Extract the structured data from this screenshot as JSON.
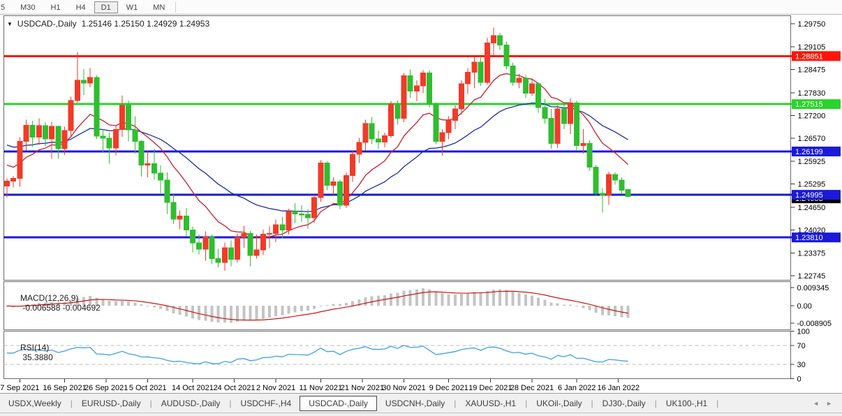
{
  "toolbar": {
    "buttons": [
      "5",
      "M30",
      "H1",
      "H4",
      "D1",
      "W1",
      "MN"
    ],
    "active": "D1"
  },
  "main_title": {
    "dropdown_icon": "▼",
    "symbol": "USDCAD-,Daily",
    "quotes": "1.25146 1.25150 1.24929 1.24953"
  },
  "colors": {
    "background": "#ffffff",
    "panel_border": "#6a6a6a",
    "candle_up": "#f23a28",
    "candle_down": "#2fbe2f",
    "hline_red": "#ff1508",
    "hline_green": "#2bd32b",
    "hline_blue": "#1a1ad8",
    "ma_fast": "#c62031",
    "ma_slow": "#1c2f9c",
    "macd_hist": "#c4c4c4",
    "macd_signal": "#c80000",
    "rsi_line": "#3da0e8",
    "rsi_level_dash": "#b8b8b8",
    "axis_text": "#000000",
    "badge_text": "#ffffff",
    "current_price_badge": "#000000"
  },
  "chart_data": {
    "type": "candlestick",
    "symbol": "USDCAD",
    "timeframe": "Daily",
    "current_quote": {
      "open": 1.25146,
      "high": 1.2515,
      "low": 1.24929,
      "close": 1.24953
    },
    "price_axis_ticks": [
      "1.29750",
      "1.29105",
      "1.28475",
      "1.27830",
      "1.27200",
      "1.26570",
      "1.25925",
      "1.25295",
      "1.24650",
      "1.24020",
      "1.23375",
      "1.22745"
    ],
    "hlines": [
      {
        "price": 1.28851,
        "label": "1.28851",
        "color_key": "hline_red"
      },
      {
        "price": 1.27515,
        "label": "1.27515",
        "color_key": "hline_green"
      },
      {
        "price": 1.26199,
        "label": "1.26199",
        "color_key": "hline_blue"
      },
      {
        "price": 1.24995,
        "label": "1.24995",
        "color_key": "hline_blue"
      },
      {
        "price": 1.2381,
        "label": "1.23810",
        "color_key": "hline_blue"
      }
    ],
    "current_price_marker": {
      "price": 1.24953,
      "label": "1.24953"
    },
    "date_ticks": [
      {
        "label": "7 Sep 2021",
        "i": 2
      },
      {
        "label": "16 Sep 2021",
        "i": 9
      },
      {
        "label": "26 Sep 2021",
        "i": 15.5
      },
      {
        "label": "5 Oct 2021",
        "i": 22
      },
      {
        "label": "14 Oct 2021",
        "i": 29
      },
      {
        "label": "24 Oct 2021",
        "i": 35.5
      },
      {
        "label": "2 Nov 2021",
        "i": 42
      },
      {
        "label": "11 Nov 2021",
        "i": 49
      },
      {
        "label": "21 Nov 2021",
        "i": 55.5
      },
      {
        "label": "30 Nov 2021",
        "i": 62
      },
      {
        "label": "9 Dec 2021",
        "i": 69
      },
      {
        "label": "19 Dec 2021",
        "i": 75.5
      },
      {
        "label": "28 Dec 2021",
        "i": 82
      },
      {
        "label": "6 Jan 2022",
        "i": 89
      },
      {
        "label": "16 Jan 2022",
        "i": 95.5
      }
    ],
    "candles": [
      [
        "2021.09.03",
        1.2524,
        1.2545,
        1.2493,
        1.2538
      ],
      [
        "2021.09.06",
        1.2538,
        1.2552,
        1.252,
        1.2545
      ],
      [
        "2021.09.07",
        1.2545,
        1.266,
        1.2522,
        1.2648
      ],
      [
        "2021.09.08",
        1.2648,
        1.2708,
        1.2622,
        1.2693
      ],
      [
        "2021.09.09",
        1.2693,
        1.2705,
        1.2633,
        1.266
      ],
      [
        "2021.09.10",
        1.266,
        1.2712,
        1.2638,
        1.2692
      ],
      [
        "2021.09.13",
        1.2692,
        1.2701,
        1.2635,
        1.2655
      ],
      [
        "2021.09.14",
        1.2655,
        1.2702,
        1.26,
        1.269
      ],
      [
        "2021.09.15",
        1.269,
        1.2692,
        1.2601,
        1.2628
      ],
      [
        "2021.09.16",
        1.2628,
        1.2689,
        1.261,
        1.2678
      ],
      [
        "2021.09.17",
        1.2678,
        1.2772,
        1.2662,
        1.2762
      ],
      [
        "2021.09.20",
        1.2762,
        1.2896,
        1.2756,
        1.2818
      ],
      [
        "2021.09.21",
        1.2818,
        1.2849,
        1.2777,
        1.281
      ],
      [
        "2021.09.22",
        1.281,
        1.2852,
        1.2798,
        1.2826
      ],
      [
        "2021.09.23",
        1.2826,
        1.2831,
        1.2655,
        1.2663
      ],
      [
        "2021.09.24",
        1.2663,
        1.2678,
        1.2618,
        1.2657
      ],
      [
        "2021.09.27",
        1.2657,
        1.2672,
        1.2586,
        1.263
      ],
      [
        "2021.09.28",
        1.263,
        1.2692,
        1.2609,
        1.2681
      ],
      [
        "2021.09.29",
        1.2681,
        1.2775,
        1.2661,
        1.2748
      ],
      [
        "2021.09.30",
        1.2748,
        1.2762,
        1.2648,
        1.268
      ],
      [
        "2021.10.01",
        1.268,
        1.2718,
        1.2614,
        1.2648
      ],
      [
        "2021.10.04",
        1.2648,
        1.2652,
        1.255,
        1.2582
      ],
      [
        "2021.10.05",
        1.2582,
        1.2622,
        1.2548,
        1.2586
      ],
      [
        "2021.10.06",
        1.2586,
        1.2628,
        1.2541,
        1.256
      ],
      [
        "2021.10.07",
        1.256,
        1.2581,
        1.2504,
        1.254
      ],
      [
        "2021.10.08",
        1.254,
        1.2562,
        1.2446,
        1.2478
      ],
      [
        "2021.10.11",
        1.2478,
        1.2502,
        1.2418,
        1.2432
      ],
      [
        "2021.10.12",
        1.2432,
        1.2456,
        1.2404,
        1.2441
      ],
      [
        "2021.10.13",
        1.2441,
        1.2463,
        1.2383,
        1.2402
      ],
      [
        "2021.10.14",
        1.2402,
        1.2411,
        1.234,
        1.2366
      ],
      [
        "2021.10.15",
        1.2366,
        1.2389,
        1.2334,
        1.2348
      ],
      [
        "2021.10.18",
        1.2348,
        1.2398,
        1.2316,
        1.2382
      ],
      [
        "2021.10.19",
        1.2382,
        1.2389,
        1.2308,
        1.2322
      ],
      [
        "2021.10.20",
        1.2322,
        1.2349,
        1.2298,
        1.2312
      ],
      [
        "2021.10.21",
        1.2312,
        1.2367,
        1.2288,
        1.2352
      ],
      [
        "2021.10.22",
        1.2352,
        1.2373,
        1.2301,
        1.232
      ],
      [
        "2021.10.25",
        1.232,
        1.2391,
        1.2312,
        1.2381
      ],
      [
        "2021.10.26",
        1.2381,
        1.2413,
        1.2352,
        1.2392
      ],
      [
        "2021.10.27",
        1.2392,
        1.2399,
        1.2301,
        1.2331
      ],
      [
        "2021.10.28",
        1.2331,
        1.2389,
        1.2322,
        1.2346
      ],
      [
        "2021.10.29",
        1.2346,
        1.2403,
        1.2332,
        1.239
      ],
      [
        "2021.11.01",
        1.239,
        1.2412,
        1.2351,
        1.2392
      ],
      [
        "2021.11.02",
        1.2392,
        1.2431,
        1.2368,
        1.2416
      ],
      [
        "2021.11.03",
        1.2416,
        1.2439,
        1.2378,
        1.2402
      ],
      [
        "2021.11.04",
        1.2402,
        1.2461,
        1.2389,
        1.2453
      ],
      [
        "2021.11.05",
        1.2453,
        1.2476,
        1.2421,
        1.2446
      ],
      [
        "2021.11.08",
        1.2446,
        1.2471,
        1.2424,
        1.2445
      ],
      [
        "2021.11.09",
        1.2445,
        1.246,
        1.2405,
        1.2436
      ],
      [
        "2021.11.10",
        1.2436,
        1.25,
        1.2421,
        1.2492
      ],
      [
        "2021.11.11",
        1.2492,
        1.2596,
        1.248,
        1.2588
      ],
      [
        "2021.11.12",
        1.2588,
        1.2592,
        1.2512,
        1.2526
      ],
      [
        "2021.11.15",
        1.2526,
        1.2548,
        1.25,
        1.2536
      ],
      [
        "2021.11.16",
        1.2536,
        1.2541,
        1.246,
        1.2471
      ],
      [
        "2021.11.17",
        1.2471,
        1.2561,
        1.2463,
        1.2553
      ],
      [
        "2021.11.18",
        1.2553,
        1.2622,
        1.2536,
        1.2612
      ],
      [
        "2021.11.19",
        1.2612,
        1.2658,
        1.2588,
        1.2645
      ],
      [
        "2021.11.22",
        1.2645,
        1.2708,
        1.2622,
        1.2698
      ],
      [
        "2021.11.23",
        1.2698,
        1.2716,
        1.264,
        1.2655
      ],
      [
        "2021.11.24",
        1.2655,
        1.2678,
        1.2628,
        1.2646
      ],
      [
        "2021.11.25",
        1.2646,
        1.2672,
        1.2632,
        1.2664
      ],
      [
        "2021.11.26",
        1.2664,
        1.276,
        1.2658,
        1.2752
      ],
      [
        "2021.11.29",
        1.2752,
        1.2762,
        1.2695,
        1.2712
      ],
      [
        "2021.11.30",
        1.2712,
        1.2837,
        1.2701,
        1.283
      ],
      [
        "2021.12.01",
        1.283,
        1.2848,
        1.2768,
        1.2788
      ],
      [
        "2021.12.02",
        1.2788,
        1.2818,
        1.276,
        1.2802
      ],
      [
        "2021.12.03",
        1.2802,
        1.2846,
        1.2782,
        1.2838
      ],
      [
        "2021.12.06",
        1.2838,
        1.2846,
        1.2742,
        1.2752
      ],
      [
        "2021.12.07",
        1.2752,
        1.2756,
        1.264,
        1.2648
      ],
      [
        "2021.12.08",
        1.2648,
        1.2682,
        1.2608,
        1.2672
      ],
      [
        "2021.12.09",
        1.2672,
        1.2718,
        1.2654,
        1.2706
      ],
      [
        "2021.12.10",
        1.2706,
        1.2748,
        1.2682,
        1.2738
      ],
      [
        "2021.12.13",
        1.2738,
        1.2818,
        1.2722,
        1.2808
      ],
      [
        "2021.12.14",
        1.2808,
        1.2852,
        1.278,
        1.284
      ],
      [
        "2021.12.15",
        1.284,
        1.2882,
        1.2796,
        1.2868
      ],
      [
        "2021.12.16",
        1.2868,
        1.2884,
        1.2802,
        1.2812
      ],
      [
        "2021.12.17",
        1.2812,
        1.2936,
        1.2806,
        1.2922
      ],
      [
        "2021.12.20",
        1.2922,
        1.2964,
        1.2888,
        1.2942
      ],
      [
        "2021.12.21",
        1.2942,
        1.295,
        1.2902,
        1.2916
      ],
      [
        "2021.12.22",
        1.2916,
        1.2926,
        1.2848,
        1.2858
      ],
      [
        "2021.12.23",
        1.2858,
        1.2866,
        1.2802,
        1.2812
      ],
      [
        "2021.12.24",
        1.2812,
        1.2836,
        1.2796,
        1.2824
      ],
      [
        "2021.12.27",
        1.2824,
        1.2832,
        1.2768,
        1.2782
      ],
      [
        "2021.12.28",
        1.2782,
        1.282,
        1.2774,
        1.2808
      ],
      [
        "2021.12.29",
        1.2808,
        1.2812,
        1.2728,
        1.2742
      ],
      [
        "2021.12.30",
        1.2742,
        1.2766,
        1.2698,
        1.2712
      ],
      [
        "2021.12.31",
        1.2712,
        1.2738,
        1.2628,
        1.2642
      ],
      [
        "2022.01.03",
        1.2642,
        1.2748,
        1.263,
        1.2738
      ],
      [
        "2022.01.04",
        1.2738,
        1.2756,
        1.2682,
        1.2698
      ],
      [
        "2022.01.05",
        1.2698,
        1.2768,
        1.2668,
        1.2755
      ],
      [
        "2022.01.06",
        1.2755,
        1.2762,
        1.2622,
        1.2636
      ],
      [
        "2022.01.07",
        1.2636,
        1.2682,
        1.2614,
        1.2642
      ],
      [
        "2022.01.10",
        1.2642,
        1.2652,
        1.2566,
        1.2576
      ],
      [
        "2022.01.11",
        1.2576,
        1.2582,
        1.2496,
        1.2504
      ],
      [
        "2022.01.12",
        1.2504,
        1.2518,
        1.245,
        1.2498
      ],
      [
        "2022.01.13",
        1.2498,
        1.2564,
        1.2472,
        1.2556
      ],
      [
        "2022.01.14",
        1.2556,
        1.2562,
        1.2528,
        1.254
      ],
      [
        "2022.01.17",
        1.254,
        1.2548,
        1.2502,
        1.2512
      ],
      [
        "2022.01.18",
        1.25146,
        1.2515,
        1.24929,
        1.24953
      ]
    ],
    "moving_averages": [
      {
        "period": 12,
        "color_key": "ma_fast"
      },
      {
        "period": 30,
        "color_key": "ma_slow"
      }
    ],
    "indicators": {
      "macd": {
        "name": "MACD(12,26,9)",
        "values": "-0.006588 -0.004692",
        "params": {
          "fast": 12,
          "slow": 26,
          "signal": 9
        },
        "axis_labels": [
          "0.009345",
          "0.00",
          "-0.008905"
        ]
      },
      "rsi": {
        "name": "RSI(14)",
        "value": "35.3880",
        "period": 14,
        "levels": [
          100,
          70,
          30,
          0
        ]
      }
    }
  },
  "tabs": {
    "items": [
      "USDX,Weekly",
      "EURUSD-,Daily",
      "AUDUSD-,Daily",
      "USDCHF-,H4",
      "USDCAD-,Daily",
      "USDCNH-,Daily",
      "XAUUSD-,H1",
      "UKOil-,Daily",
      "DJ30-,Daily",
      "UK100-,H1"
    ],
    "active": "USDCAD-,Daily",
    "scroll_left_icon": "◄",
    "scroll_right_icon": "►"
  }
}
